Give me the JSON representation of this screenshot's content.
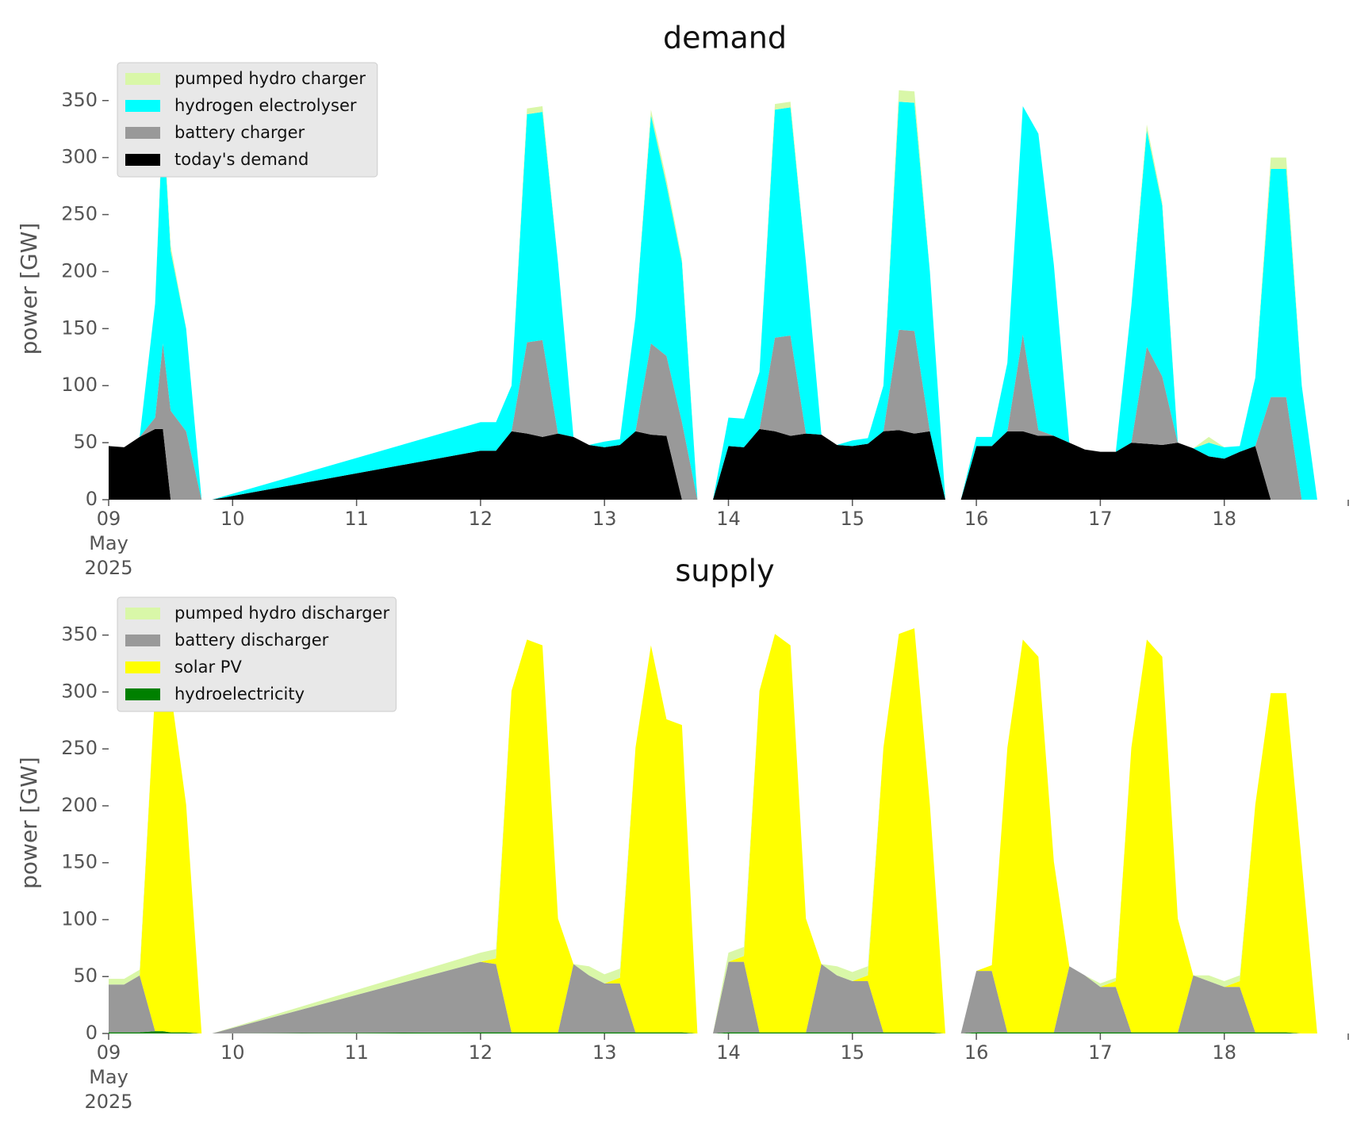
{
  "chart_data": [
    {
      "type": "area",
      "stacked": true,
      "title": "demand",
      "ylabel": "power [GW]",
      "xlabel": "",
      "ylim": [
        0,
        370
      ],
      "yticks": [
        0,
        50,
        100,
        150,
        200,
        250,
        300,
        350
      ],
      "xlim": [
        "2025-05-09",
        "2025-05-19"
      ],
      "xticks": [
        "09\nMay\n2025",
        "10",
        "11",
        "12",
        "13",
        "14",
        "15",
        "16",
        "17",
        "18"
      ],
      "grid": false,
      "legend_position": "top-left",
      "legend": [
        "pumped hydro charger",
        "hydrogen electrolyser",
        "battery charger",
        "today's demand"
      ],
      "x": [
        "2025-05-09T00:00",
        "2025-05-09T03:00",
        "2025-05-09T06:00",
        "2025-05-09T09:00",
        "2025-05-09T10:30",
        "2025-05-09T12:00",
        "2025-05-09T15:00",
        "2025-05-09T18:00",
        "2025-05-09T20:00",
        "2025-05-12T00:00",
        "2025-05-12T03:00",
        "2025-05-12T06:00",
        "2025-05-12T09:00",
        "2025-05-12T12:00",
        "2025-05-12T15:00",
        "2025-05-12T18:00",
        "2025-05-12T21:00",
        "2025-05-13T00:00",
        "2025-05-13T03:00",
        "2025-05-13T06:00",
        "2025-05-13T09:00",
        "2025-05-13T12:00",
        "2025-05-13T15:00",
        "2025-05-13T18:00",
        "2025-05-13T21:00",
        "2025-05-14T00:00",
        "2025-05-14T03:00",
        "2025-05-14T06:00",
        "2025-05-14T09:00",
        "2025-05-14T12:00",
        "2025-05-14T15:00",
        "2025-05-14T18:00",
        "2025-05-14T21:00",
        "2025-05-15T00:00",
        "2025-05-15T03:00",
        "2025-05-15T06:00",
        "2025-05-15T09:00",
        "2025-05-15T12:00",
        "2025-05-15T15:00",
        "2025-05-15T18:00",
        "2025-05-15T21:00",
        "2025-05-16T00:00",
        "2025-05-16T03:00",
        "2025-05-16T06:00",
        "2025-05-16T09:00",
        "2025-05-16T12:00",
        "2025-05-16T15:00",
        "2025-05-16T18:00",
        "2025-05-16T21:00",
        "2025-05-17T00:00",
        "2025-05-17T03:00",
        "2025-05-17T06:00",
        "2025-05-17T09:00",
        "2025-05-17T12:00",
        "2025-05-17T15:00",
        "2025-05-17T18:00",
        "2025-05-17T21:00",
        "2025-05-18T00:00",
        "2025-05-18T03:00",
        "2025-05-18T06:00",
        "2025-05-18T09:00",
        "2025-05-18T12:00",
        "2025-05-18T15:00",
        "2025-05-18T18:00",
        "2025-05-18T21:00"
      ],
      "series": [
        {
          "name": "today's demand",
          "color": "#000000",
          "values": [
            47,
            46,
            55,
            62,
            62,
            0,
            0,
            0,
            0,
            43,
            43,
            60,
            58,
            55,
            58,
            55,
            48,
            46,
            48,
            60,
            57,
            56,
            0,
            0,
            0,
            47,
            46,
            62,
            60,
            56,
            58,
            57,
            48,
            47,
            49,
            60,
            61,
            58,
            60,
            0,
            0,
            47,
            47,
            60,
            60,
            56,
            56,
            50,
            44,
            42,
            42,
            50,
            49,
            48,
            50,
            45,
            38,
            36,
            42,
            47,
            0,
            0,
            0,
            0,
            0
          ]
        },
        {
          "name": "battery charger",
          "color": "#999999",
          "values": [
            0,
            0,
            0,
            10,
            75,
            78,
            60,
            0,
            0,
            0,
            0,
            0,
            80,
            85,
            0,
            0,
            0,
            0,
            0,
            0,
            80,
            70,
            68,
            0,
            0,
            0,
            0,
            0,
            82,
            88,
            0,
            0,
            0,
            0,
            0,
            0,
            88,
            90,
            0,
            0,
            0,
            0,
            0,
            0,
            85,
            5,
            0,
            0,
            0,
            0,
            0,
            0,
            85,
            60,
            0,
            0,
            0,
            0,
            0,
            0,
            90,
            90,
            0,
            0,
            0
          ]
        },
        {
          "name": "hydrogen electrolyser",
          "color": "#00ffff",
          "values": [
            0,
            0,
            0,
            100,
            200,
            140,
            90,
            0,
            0,
            25,
            25,
            40,
            200,
            200,
            150,
            0,
            0,
            5,
            5,
            100,
            200,
            150,
            140,
            0,
            0,
            25,
            25,
            50,
            200,
            200,
            150,
            0,
            0,
            5,
            5,
            40,
            200,
            200,
            140,
            0,
            0,
            8,
            8,
            60,
            200,
            260,
            150,
            0,
            0,
            0,
            0,
            120,
            190,
            150,
            0,
            0,
            12,
            10,
            5,
            60,
            200,
            200,
            100,
            0,
            0
          ]
        },
        {
          "name": "pumped hydro charger",
          "color": "#d9f7a8",
          "values": [
            0,
            0,
            0,
            0,
            5,
            5,
            0,
            0,
            0,
            0,
            0,
            0,
            5,
            5,
            0,
            0,
            0,
            0,
            0,
            0,
            5,
            5,
            3,
            0,
            0,
            0,
            0,
            0,
            5,
            5,
            0,
            0,
            0,
            0,
            0,
            0,
            10,
            10,
            0,
            0,
            0,
            0,
            0,
            0,
            0,
            0,
            0,
            0,
            0,
            0,
            0,
            0,
            5,
            3,
            0,
            0,
            5,
            0,
            0,
            0,
            10,
            10,
            0,
            0,
            0
          ]
        }
      ]
    },
    {
      "type": "area",
      "stacked": true,
      "title": "supply",
      "ylabel": "power [GW]",
      "xlabel": "",
      "ylim": [
        0,
        370
      ],
      "yticks": [
        0,
        50,
        100,
        150,
        200,
        250,
        300,
        350
      ],
      "xlim": [
        "2025-05-09",
        "2025-05-19"
      ],
      "xticks": [
        "09\nMay\n2025",
        "10",
        "11",
        "12",
        "13",
        "14",
        "15",
        "16",
        "17",
        "18"
      ],
      "grid": false,
      "legend_position": "top-left",
      "legend": [
        "pumped hydro discharger",
        "battery discharger",
        "solar PV",
        "hydroelectricity"
      ],
      "x": [
        "2025-05-09T00:00",
        "2025-05-09T03:00",
        "2025-05-09T06:00",
        "2025-05-09T09:00",
        "2025-05-09T10:30",
        "2025-05-09T12:00",
        "2025-05-09T15:00",
        "2025-05-09T18:00",
        "2025-05-09T20:00",
        "2025-05-12T00:00",
        "2025-05-12T03:00",
        "2025-05-12T06:00",
        "2025-05-12T09:00",
        "2025-05-12T12:00",
        "2025-05-12T15:00",
        "2025-05-12T18:00",
        "2025-05-12T21:00",
        "2025-05-13T00:00",
        "2025-05-13T03:00",
        "2025-05-13T06:00",
        "2025-05-13T09:00",
        "2025-05-13T12:00",
        "2025-05-13T15:00",
        "2025-05-13T18:00",
        "2025-05-13T21:00",
        "2025-05-14T00:00",
        "2025-05-14T03:00",
        "2025-05-14T06:00",
        "2025-05-14T09:00",
        "2025-05-14T12:00",
        "2025-05-14T15:00",
        "2025-05-14T18:00",
        "2025-05-14T21:00",
        "2025-05-15T00:00",
        "2025-05-15T03:00",
        "2025-05-15T06:00",
        "2025-05-15T09:00",
        "2025-05-15T12:00",
        "2025-05-15T15:00",
        "2025-05-15T18:00",
        "2025-05-15T21:00",
        "2025-05-16T00:00",
        "2025-05-16T03:00",
        "2025-05-16T06:00",
        "2025-05-16T09:00",
        "2025-05-16T12:00",
        "2025-05-16T15:00",
        "2025-05-16T18:00",
        "2025-05-16T21:00",
        "2025-05-17T00:00",
        "2025-05-17T03:00",
        "2025-05-17T06:00",
        "2025-05-17T09:00",
        "2025-05-17T12:00",
        "2025-05-17T15:00",
        "2025-05-17T18:00",
        "2025-05-17T21:00",
        "2025-05-18T00:00",
        "2025-05-18T03:00",
        "2025-05-18T06:00",
        "2025-05-18T09:00",
        "2025-05-18T12:00",
        "2025-05-18T15:00",
        "2025-05-18T18:00",
        "2025-05-18T21:00"
      ],
      "series": [
        {
          "name": "hydroelectricity",
          "color": "#008000",
          "values": [
            1,
            1,
            1,
            2,
            2,
            1,
            1,
            0,
            0,
            1,
            1,
            1,
            1,
            1,
            1,
            1,
            1,
            1,
            1,
            1,
            1,
            1,
            1,
            0,
            0,
            1,
            1,
            1,
            1,
            1,
            1,
            1,
            1,
            1,
            1,
            1,
            1,
            1,
            1,
            0,
            0,
            1,
            1,
            1,
            1,
            1,
            1,
            1,
            1,
            1,
            1,
            1,
            1,
            1,
            1,
            1,
            1,
            1,
            1,
            1,
            1,
            1,
            0,
            0,
            0
          ]
        },
        {
          "name": "battery discharger",
          "color": "#999999",
          "values": [
            42,
            42,
            50,
            0,
            0,
            0,
            0,
            0,
            0,
            62,
            60,
            0,
            0,
            0,
            0,
            60,
            50,
            43,
            43,
            0,
            0,
            0,
            0,
            0,
            0,
            62,
            62,
            0,
            0,
            0,
            0,
            60,
            50,
            45,
            45,
            0,
            0,
            0,
            0,
            0,
            0,
            54,
            54,
            0,
            0,
            0,
            0,
            58,
            50,
            40,
            40,
            0,
            0,
            0,
            0,
            50,
            45,
            40,
            40,
            0,
            0,
            0,
            0,
            0,
            0
          ]
        },
        {
          "name": "solar PV",
          "color": "#ffff00",
          "values": [
            0,
            0,
            0,
            300,
            345,
            300,
            200,
            0,
            0,
            0,
            5,
            300,
            345,
            340,
            100,
            0,
            0,
            0,
            5,
            250,
            340,
            275,
            270,
            0,
            0,
            0,
            5,
            300,
            350,
            340,
            100,
            0,
            0,
            0,
            5,
            250,
            350,
            355,
            200,
            0,
            0,
            0,
            5,
            250,
            345,
            330,
            150,
            0,
            0,
            0,
            5,
            250,
            345,
            330,
            100,
            0,
            0,
            0,
            5,
            200,
            298,
            298,
            150,
            0,
            0
          ]
        },
        {
          "name": "pumped hydro discharger",
          "color": "#d9f7a8",
          "values": [
            5,
            5,
            5,
            0,
            0,
            0,
            0,
            0,
            0,
            8,
            8,
            0,
            0,
            0,
            0,
            0,
            8,
            8,
            8,
            0,
            0,
            0,
            0,
            0,
            0,
            8,
            8,
            0,
            0,
            0,
            0,
            0,
            8,
            8,
            8,
            0,
            0,
            0,
            0,
            0,
            0,
            0,
            0,
            0,
            0,
            0,
            0,
            0,
            0,
            3,
            3,
            0,
            0,
            0,
            0,
            0,
            5,
            5,
            5,
            0,
            0,
            0,
            0,
            0,
            0
          ]
        }
      ]
    }
  ]
}
